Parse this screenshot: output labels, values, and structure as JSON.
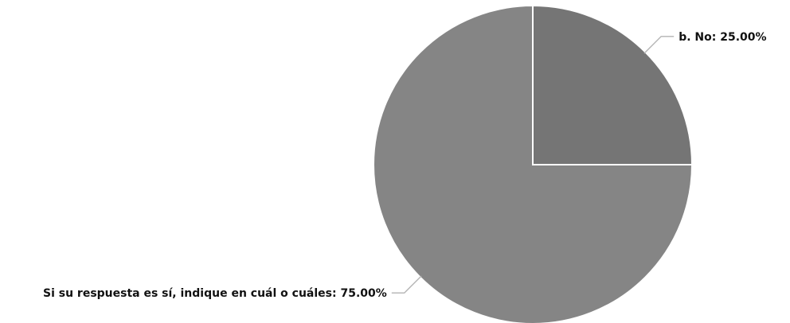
{
  "chart_data": {
    "type": "pie",
    "title": "",
    "slices": [
      {
        "label": "b. No",
        "value": 25.0,
        "value_text": "25.00%",
        "color": "#757575"
      },
      {
        "label": "Si su respuesta es sí, indique en cuál o cuáles",
        "value": 75.0,
        "value_text": "75.00%",
        "color": "#858585"
      }
    ],
    "legend": "none",
    "data_labels": "outside with leader lines"
  }
}
